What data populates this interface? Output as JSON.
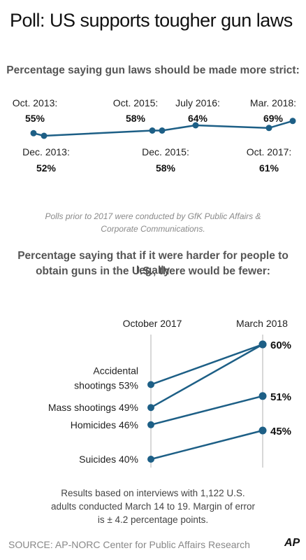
{
  "title": "Poll: US supports tougher gun laws",
  "chart1_heading": "Percentage saying gun laws should be made more strict:",
  "note_line1": "Polls prior to 2017 were conducted by GfK Public Affairs &",
  "note_line2": "Corporate Communications.",
  "chart2_heading_line1": "Percentage saying that if it were harder for people to legally",
  "chart2_heading_line2": "obtain guns in the U.S., there would be fewer:",
  "footnote_line1": "Results based on interviews with 1,122 U.S.",
  "footnote_line2": "adults conducted March 14 to 19. Margin of error",
  "footnote_line3": "is ± 4.2 percentage points.",
  "source": "SOURCE: AP-NORC Center for Public Affairs Research",
  "credit": "AP",
  "colors": {
    "line": "#1d5f86",
    "grid": "#cccccc"
  },
  "chart_data": [
    {
      "type": "line",
      "title": "Percentage saying gun laws should be made more strict:",
      "x": [
        "Oct. 2013:",
        "Dec. 2013:",
        "Oct. 2015:",
        "Dec. 2015:",
        "July 2016:",
        "Oct. 2017:",
        "Mar. 2018:"
      ],
      "values": [
        55,
        52,
        58,
        58,
        64,
        61,
        69
      ],
      "value_labels": [
        "55%",
        "52%",
        "58%",
        "58%",
        "64%",
        "61%",
        "69%"
      ]
    },
    {
      "type": "line",
      "title": "Percentage saying that if it were harder for people to legally obtain guns in the U.S., there would be fewer:",
      "x": [
        "October 2017",
        "March 2018"
      ],
      "series": [
        {
          "name": "Accidental shootings",
          "values": [
            53,
            60
          ],
          "left_label_line1": "Accidental",
          "left_label_line2": "shootings 53%",
          "right_label": "60%"
        },
        {
          "name": "Mass shootings",
          "values": [
            49,
            60
          ],
          "left_label": "Mass shootings 49%",
          "right_label": ""
        },
        {
          "name": "Homicides",
          "values": [
            46,
            51
          ],
          "left_label": "Homicides 46%",
          "right_label": "51%"
        },
        {
          "name": "Suicides",
          "values": [
            40,
            45
          ],
          "left_label": "Suicides 40%",
          "right_label": "45%"
        }
      ]
    }
  ]
}
